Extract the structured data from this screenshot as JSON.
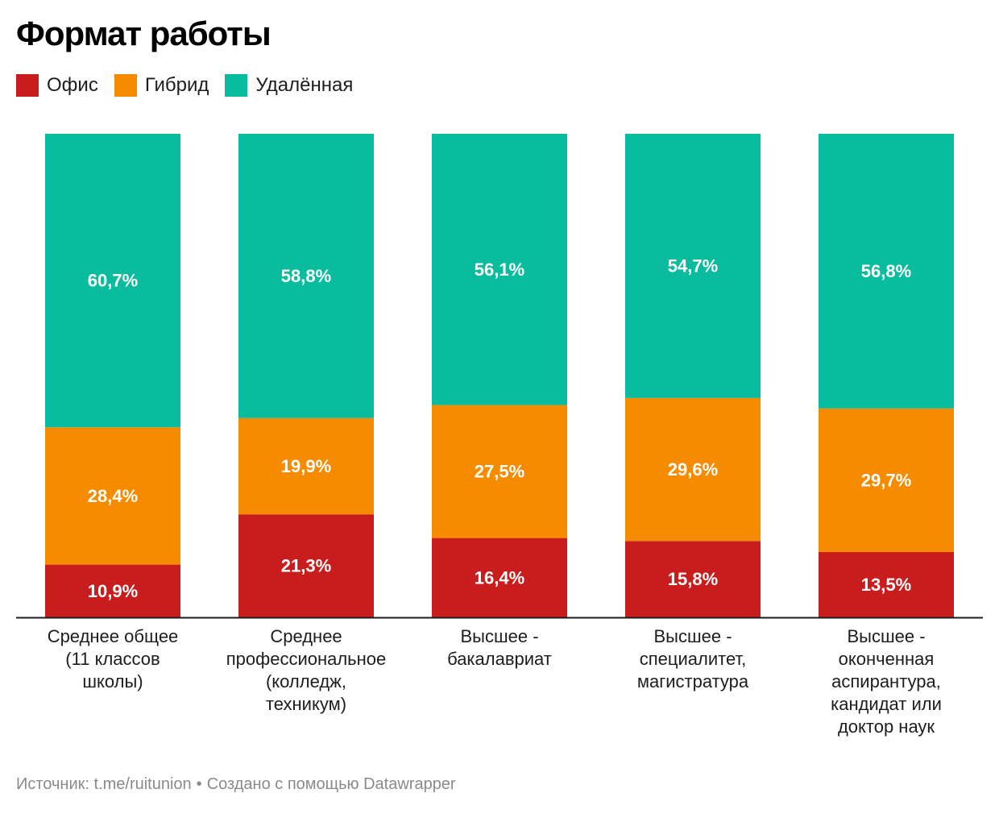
{
  "title": "Формат работы",
  "legend": [
    {
      "label": "Офис",
      "color": "#c91d1d"
    },
    {
      "label": "Гибрид",
      "color": "#f78b00"
    },
    {
      "label": "Удалённая",
      "color": "#0abc9e"
    }
  ],
  "footer": {
    "source": "Источник: t.me/ruitunion",
    "separator": "•",
    "credit": "Создано с помощью Datawrapper"
  },
  "chart_data": {
    "type": "bar",
    "stacked": true,
    "orientation": "vertical",
    "categories": [
      "Среднее общее (11 классов школы)",
      "Среднее профессиональное (колледж, техникум)",
      "Высшее - бакалавриат",
      "Высшее - специалитет, магистратура",
      "Высшее - оконченная аспирантура, кандидат или доктор наук"
    ],
    "series": [
      {
        "name": "Офис",
        "color": "#c91d1d",
        "values": [
          10.9,
          21.3,
          16.4,
          15.8,
          13.5
        ],
        "labels": [
          "10,9%",
          "21,3%",
          "16,4%",
          "15,8%",
          "13,5%"
        ]
      },
      {
        "name": "Гибрид",
        "color": "#f78b00",
        "values": [
          28.4,
          19.9,
          27.5,
          29.6,
          29.7
        ],
        "labels": [
          "28,4%",
          "19,9%",
          "27,5%",
          "29,6%",
          "29,7%"
        ]
      },
      {
        "name": "Удалённая",
        "color": "#0abc9e",
        "values": [
          60.7,
          58.8,
          56.1,
          54.7,
          56.8
        ],
        "labels": [
          "60,7%",
          "58,8%",
          "56,1%",
          "54,7%",
          "56,8%"
        ]
      }
    ],
    "legend_position": "top-left",
    "grid": false
  }
}
